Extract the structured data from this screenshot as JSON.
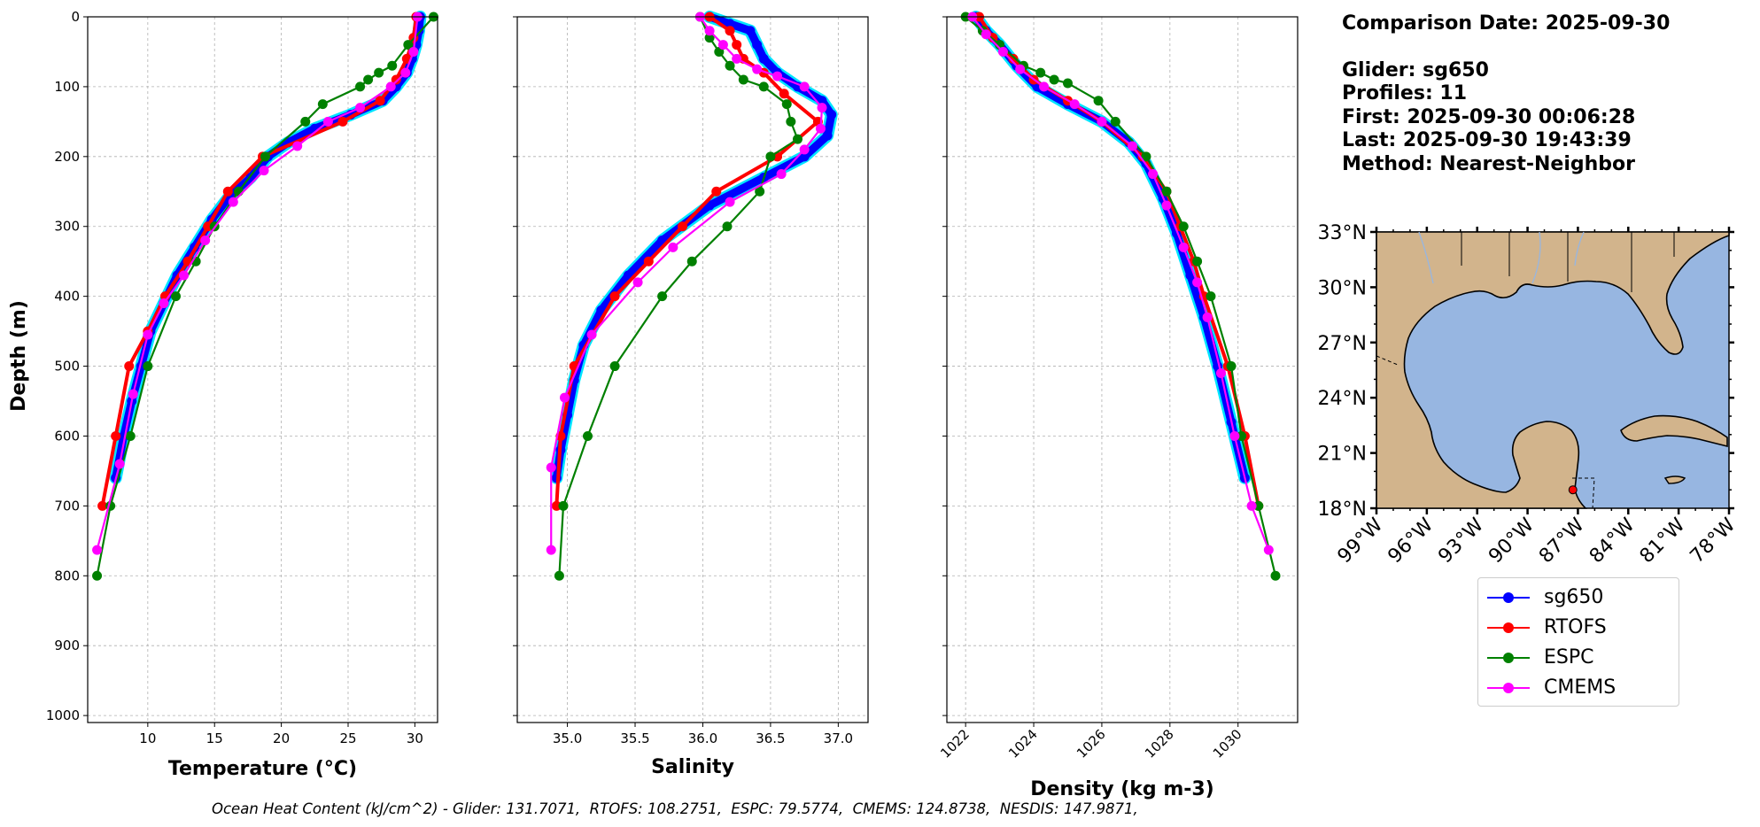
{
  "info_panel": {
    "comparison_date": "Comparison Date: 2025-09-30",
    "glider": "Glider: sg650",
    "profiles": "Profiles: 11",
    "first": "First: 2025-09-30 00:06:28",
    "last": "Last: 2025-09-30 19:43:39",
    "method": "Method: Nearest-Neighbor"
  },
  "footer_text": "Ocean Heat Content (kJ/cm^2) - Glider: 131.7071,  RTOFS: 108.2751,  ESPC: 79.5774,  CMEMS: 124.8738,  NESDIS: 147.9871,",
  "legend": [
    {
      "label": "sg650",
      "color": "#0000ff"
    },
    {
      "label": "RTOFS",
      "color": "#ff0000"
    },
    {
      "label": "ESPC",
      "color": "#008000"
    },
    {
      "label": "CMEMS",
      "color": "#ff00ff"
    }
  ],
  "colors": {
    "glider": "#0000ff",
    "glider_halo": "#00e5ff",
    "rtofs": "#ff0000",
    "espc": "#008000",
    "cmems": "#ff00ff",
    "land": "#d2b48c",
    "ocean": "#97b6e1"
  },
  "chart_data": [
    {
      "type": "line",
      "xlabel": "Temperature (°C)",
      "ylabel": "Depth (m)",
      "xlim": [
        5.5,
        31.7
      ],
      "ylim": [
        1010,
        0
      ],
      "xticks": [
        10,
        15,
        20,
        25,
        30
      ],
      "yticks": [
        0,
        100,
        200,
        300,
        400,
        500,
        600,
        700,
        800,
        900,
        1000
      ],
      "grid": true,
      "series": [
        {
          "name": "sg650",
          "points": [
            [
              30.4,
              0
            ],
            [
              30.3,
              20
            ],
            [
              30.1,
              40
            ],
            [
              29.8,
              60
            ],
            [
              29.4,
              80
            ],
            [
              28.6,
              100
            ],
            [
              27.6,
              120
            ],
            [
              25.2,
              140
            ],
            [
              22.5,
              160
            ],
            [
              20.5,
              180
            ],
            [
              19.0,
              200
            ],
            [
              17.7,
              230
            ],
            [
              16.0,
              260
            ],
            [
              14.8,
              290
            ],
            [
              13.5,
              330
            ],
            [
              12.2,
              370
            ],
            [
              11.2,
              410
            ],
            [
              10.2,
              450
            ],
            [
              9.5,
              500
            ],
            [
              8.8,
              550
            ],
            [
              8.2,
              600
            ],
            [
              7.6,
              660
            ]
          ]
        },
        {
          "name": "RTOFS",
          "points": [
            [
              30.1,
              0
            ],
            [
              29.9,
              30
            ],
            [
              29.4,
              60
            ],
            [
              28.6,
              90
            ],
            [
              27.4,
              120
            ],
            [
              24.6,
              150
            ],
            [
              18.6,
              200
            ],
            [
              16.0,
              250
            ],
            [
              14.5,
              300
            ],
            [
              13.0,
              350
            ],
            [
              11.3,
              400
            ],
            [
              10.0,
              450
            ],
            [
              8.6,
              500
            ],
            [
              7.6,
              600
            ],
            [
              6.6,
              700
            ]
          ]
        },
        {
          "name": "ESPC",
          "points": [
            [
              31.4,
              0
            ],
            [
              29.5,
              40
            ],
            [
              28.3,
              70
            ],
            [
              27.3,
              80
            ],
            [
              26.5,
              90
            ],
            [
              25.9,
              100
            ],
            [
              23.1,
              125
            ],
            [
              21.8,
              150
            ],
            [
              18.8,
              200
            ],
            [
              16.8,
              250
            ],
            [
              15.0,
              300
            ],
            [
              13.6,
              350
            ],
            [
              12.1,
              400
            ],
            [
              10.0,
              500
            ],
            [
              8.7,
              600
            ],
            [
              7.2,
              700
            ],
            [
              6.2,
              800
            ]
          ]
        },
        {
          "name": "CMEMS",
          "points": [
            [
              30.2,
              0
            ],
            [
              29.9,
              50
            ],
            [
              29.3,
              80
            ],
            [
              28.2,
              100
            ],
            [
              25.9,
              130
            ],
            [
              23.5,
              150
            ],
            [
              21.2,
              185
            ],
            [
              18.7,
              220
            ],
            [
              16.4,
              265
            ],
            [
              14.3,
              320
            ],
            [
              12.7,
              370
            ],
            [
              11.2,
              410
            ],
            [
              10.0,
              455
            ],
            [
              8.9,
              540
            ],
            [
              7.9,
              640
            ],
            [
              6.2,
              763
            ]
          ]
        }
      ]
    },
    {
      "type": "line",
      "xlabel": "Salinity",
      "ylabel": "",
      "xlim": [
        34.63,
        37.22
      ],
      "ylim": [
        1010,
        0
      ],
      "xticks": [
        35.0,
        35.5,
        36.0,
        36.5,
        37.0
      ],
      "yticks": [
        0,
        100,
        200,
        300,
        400,
        500,
        600,
        700,
        800,
        900,
        1000
      ],
      "grid": true,
      "series": [
        {
          "name": "sg650",
          "points": [
            [
              36.05,
              0
            ],
            [
              36.2,
              10
            ],
            [
              36.35,
              20
            ],
            [
              36.4,
              40
            ],
            [
              36.45,
              60
            ],
            [
              36.55,
              80
            ],
            [
              36.7,
              100
            ],
            [
              36.88,
              120
            ],
            [
              36.95,
              140
            ],
            [
              36.92,
              170
            ],
            [
              36.75,
              200
            ],
            [
              36.45,
              230
            ],
            [
              36.05,
              270
            ],
            [
              35.7,
              320
            ],
            [
              35.45,
              370
            ],
            [
              35.25,
              420
            ],
            [
              35.12,
              470
            ],
            [
              35.05,
              520
            ],
            [
              35.0,
              570
            ],
            [
              34.95,
              620
            ],
            [
              34.92,
              660
            ]
          ]
        },
        {
          "name": "RTOFS",
          "points": [
            [
              36.05,
              0
            ],
            [
              36.2,
              20
            ],
            [
              36.25,
              40
            ],
            [
              36.3,
              60
            ],
            [
              36.45,
              80
            ],
            [
              36.6,
              110
            ],
            [
              36.85,
              150
            ],
            [
              36.55,
              200
            ],
            [
              36.1,
              250
            ],
            [
              35.85,
              300
            ],
            [
              35.6,
              350
            ],
            [
              35.35,
              400
            ],
            [
              35.05,
              500
            ],
            [
              34.95,
              600
            ],
            [
              34.92,
              700
            ]
          ]
        },
        {
          "name": "ESPC",
          "points": [
            [
              35.98,
              0
            ],
            [
              36.05,
              30
            ],
            [
              36.12,
              50
            ],
            [
              36.2,
              70
            ],
            [
              36.3,
              90
            ],
            [
              36.45,
              100
            ],
            [
              36.62,
              125
            ],
            [
              36.65,
              150
            ],
            [
              36.7,
              175
            ],
            [
              36.5,
              200
            ],
            [
              36.42,
              250
            ],
            [
              36.18,
              300
            ],
            [
              35.92,
              350
            ],
            [
              35.7,
              400
            ],
            [
              35.35,
              500
            ],
            [
              35.15,
              600
            ],
            [
              34.97,
              700
            ],
            [
              34.94,
              800
            ]
          ]
        },
        {
          "name": "CMEMS",
          "points": [
            [
              35.98,
              0
            ],
            [
              36.05,
              20
            ],
            [
              36.15,
              40
            ],
            [
              36.25,
              60
            ],
            [
              36.4,
              75
            ],
            [
              36.55,
              85
            ],
            [
              36.75,
              100
            ],
            [
              36.88,
              130
            ],
            [
              36.87,
              160
            ],
            [
              36.75,
              190
            ],
            [
              36.58,
              225
            ],
            [
              36.2,
              265
            ],
            [
              35.78,
              330
            ],
            [
              35.52,
              380
            ],
            [
              35.18,
              455
            ],
            [
              34.98,
              545
            ],
            [
              34.88,
              645
            ],
            [
              34.88,
              763
            ]
          ]
        }
      ]
    },
    {
      "type": "line",
      "xlabel": "Density (kg m-3)",
      "ylabel": "",
      "xlim": [
        1021.45,
        1031.75
      ],
      "ylim": [
        1010,
        0
      ],
      "xticks": [
        1022,
        1024,
        1026,
        1028,
        1030
      ],
      "yticks": [
        0,
        100,
        200,
        300,
        400,
        500,
        600,
        700,
        800,
        900,
        1000
      ],
      "grid": true,
      "series": [
        {
          "name": "sg650",
          "points": [
            [
              1022.3,
              0
            ],
            [
              1022.6,
              20
            ],
            [
              1023.0,
              40
            ],
            [
              1023.5,
              70
            ],
            [
              1024.1,
              100
            ],
            [
              1025.0,
              125
            ],
            [
              1026.0,
              150
            ],
            [
              1026.8,
              180
            ],
            [
              1027.3,
              210
            ],
            [
              1027.8,
              260
            ],
            [
              1028.2,
              310
            ],
            [
              1028.6,
              370
            ],
            [
              1029.0,
              430
            ],
            [
              1029.4,
              500
            ],
            [
              1029.8,
              580
            ],
            [
              1030.2,
              660
            ]
          ]
        },
        {
          "name": "RTOFS",
          "points": [
            [
              1022.4,
              0
            ],
            [
              1022.8,
              30
            ],
            [
              1023.4,
              60
            ],
            [
              1024.0,
              90
            ],
            [
              1025.0,
              120
            ],
            [
              1026.0,
              150
            ],
            [
              1027.2,
              200
            ],
            [
              1027.9,
              250
            ],
            [
              1028.3,
              300
            ],
            [
              1028.7,
              350
            ],
            [
              1029.0,
              400
            ],
            [
              1029.7,
              500
            ],
            [
              1030.2,
              600
            ],
            [
              1030.6,
              700
            ]
          ]
        },
        {
          "name": "ESPC",
          "points": [
            [
              1022.0,
              0
            ],
            [
              1022.5,
              20
            ],
            [
              1023.0,
              40
            ],
            [
              1023.7,
              70
            ],
            [
              1024.2,
              80
            ],
            [
              1024.6,
              90
            ],
            [
              1025.0,
              95
            ],
            [
              1025.9,
              120
            ],
            [
              1026.4,
              150
            ],
            [
              1027.3,
              200
            ],
            [
              1027.9,
              250
            ],
            [
              1028.4,
              300
            ],
            [
              1028.8,
              350
            ],
            [
              1029.2,
              400
            ],
            [
              1029.8,
              500
            ],
            [
              1030.1,
              600
            ],
            [
              1030.6,
              700
            ],
            [
              1031.1,
              800
            ]
          ]
        },
        {
          "name": "CMEMS",
          "points": [
            [
              1022.2,
              0
            ],
            [
              1022.6,
              25
            ],
            [
              1023.1,
              50
            ],
            [
              1023.6,
              75
            ],
            [
              1024.3,
              100
            ],
            [
              1025.2,
              125
            ],
            [
              1026.0,
              150
            ],
            [
              1026.9,
              185
            ],
            [
              1027.5,
              225
            ],
            [
              1027.9,
              270
            ],
            [
              1028.4,
              330
            ],
            [
              1028.8,
              380
            ],
            [
              1029.1,
              430
            ],
            [
              1029.5,
              510
            ],
            [
              1029.9,
              600
            ],
            [
              1030.4,
              700
            ],
            [
              1030.9,
              763
            ]
          ]
        }
      ]
    }
  ],
  "map": {
    "lon_range": [
      -99,
      -78
    ],
    "lat_range": [
      18,
      33
    ],
    "lon_ticks": [
      "99°W",
      "96°W",
      "93°W",
      "90°W",
      "87°W",
      "84°W",
      "81°W",
      "78°W"
    ],
    "lat_ticks": [
      "18°N",
      "21°N",
      "24°N",
      "27°N",
      "30°N",
      "33°N"
    ],
    "glider_position": {
      "lon": -87.3,
      "lat": 19.0
    }
  }
}
